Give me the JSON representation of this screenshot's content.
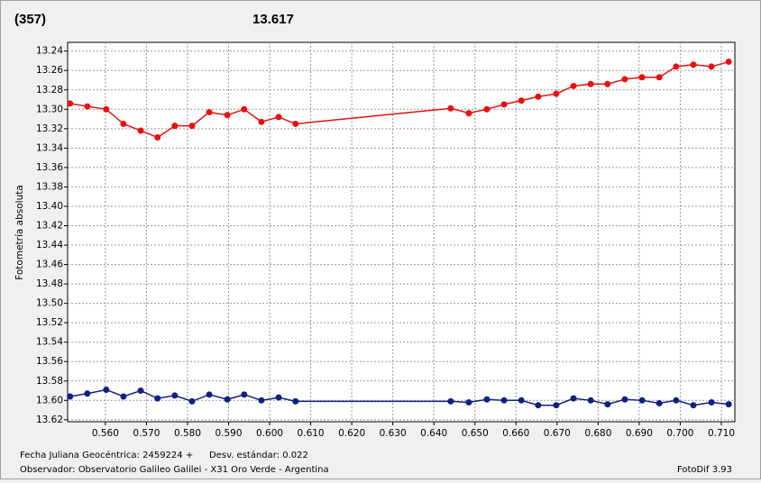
{
  "chart_data": {
    "type": "line",
    "title": "(357)",
    "title_color": "#e00000",
    "subtitle": "13.617",
    "subtitle_color": "#1a237e",
    "ylabel": "Fotometría absoluta",
    "footer_date": "Fecha Juliana Geocéntrica: 2459224 +",
    "footer_std": "Desv. estándar: 0.022",
    "footer_observer": "Observador: Observatorio Galileo Galilei - X31 Oro Verde - Argentina",
    "footer_software": "FotoDif 3.93",
    "x": [
      0.5514,
      0.5556,
      0.5602,
      0.5644,
      0.5686,
      0.5727,
      0.5769,
      0.5811,
      0.5853,
      0.5897,
      0.5938,
      0.598,
      0.6022,
      0.6063,
      0.6441,
      0.6485,
      0.6529,
      0.6571,
      0.6613,
      0.6654,
      0.6698,
      0.674,
      0.6782,
      0.6823,
      0.6865,
      0.6907,
      0.6949,
      0.699,
      0.7032,
      0.7076,
      0.7118
    ],
    "series": [
      {
        "color": "#e81010",
        "values": [
          13.294,
          13.297,
          13.3,
          13.315,
          13.322,
          13.329,
          13.317,
          13.317,
          13.303,
          13.306,
          13.3,
          13.313,
          13.308,
          13.315,
          13.299,
          13.304,
          13.3,
          13.295,
          13.291,
          13.287,
          13.284,
          13.276,
          13.274,
          13.274,
          13.269,
          13.267,
          13.267,
          13.256,
          13.254,
          13.256,
          13.251
        ]
      },
      {
        "color": "#102080",
        "values": [
          13.596,
          13.593,
          13.589,
          13.596,
          13.59,
          13.598,
          13.595,
          13.601,
          13.594,
          13.599,
          13.594,
          13.6,
          13.597,
          13.601,
          13.601,
          13.602,
          13.599,
          13.6,
          13.6,
          13.605,
          13.605,
          13.598,
          13.6,
          13.604,
          13.599,
          13.6,
          13.603,
          13.6,
          13.605,
          13.602,
          13.604
        ]
      }
    ],
    "xlim": [
      0.5508,
      0.7133
    ],
    "xticks": [
      {
        "value": 0.56,
        "label": "0.560"
      },
      {
        "value": 0.57,
        "label": "0.570"
      },
      {
        "value": 0.58,
        "label": "0.580"
      },
      {
        "value": 0.59,
        "label": "0.590"
      },
      {
        "value": 0.6,
        "label": "0.600"
      },
      {
        "value": 0.61,
        "label": "0.610"
      },
      {
        "value": 0.62,
        "label": "0.620"
      },
      {
        "value": 0.63,
        "label": "0.630"
      },
      {
        "value": 0.64,
        "label": "0.640"
      },
      {
        "value": 0.65,
        "label": "0.650"
      },
      {
        "value": 0.66,
        "label": "0.660"
      },
      {
        "value": 0.67,
        "label": "0.670"
      },
      {
        "value": 0.68,
        "label": "0.680"
      },
      {
        "value": 0.69,
        "label": "0.690"
      },
      {
        "value": 0.7,
        "label": "0.700"
      },
      {
        "value": 0.71,
        "label": "0.710"
      }
    ],
    "ylim": [
      13.231,
      13.622
    ],
    "y_inverted": true,
    "yticks": [
      13.24,
      13.26,
      13.28,
      {
        "value": 13.3,
        "label": "13.30"
      },
      13.32,
      13.34,
      13.36,
      13.38,
      {
        "value": 13.4,
        "label": "13.40"
      },
      13.42,
      13.44,
      13.46,
      13.48,
      {
        "value": 13.5,
        "label": "13.50"
      },
      13.52,
      13.54,
      13.56,
      13.58,
      {
        "value": 13.6,
        "label": "13.60"
      },
      13.62
    ],
    "grid": true
  }
}
